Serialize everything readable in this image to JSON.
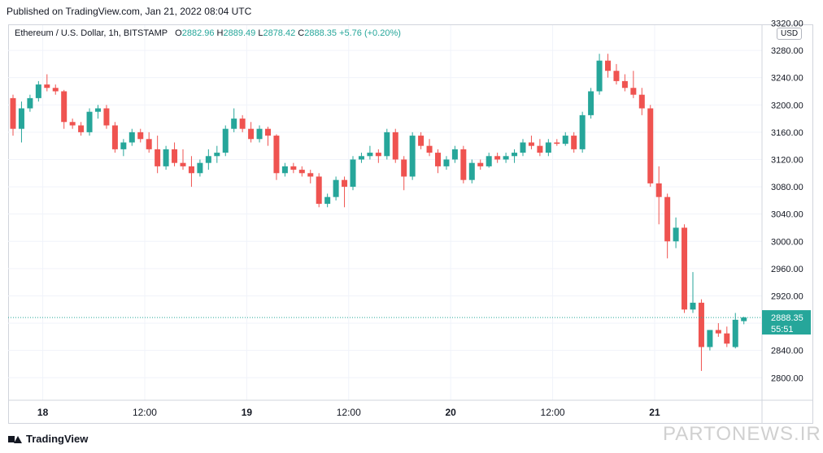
{
  "published": "Published on TradingView.com, Jan 21, 2022 08:04 UTC",
  "legend": {
    "symbol": "Ethereum / U.S. Dollar, 1h, BITSTAMP",
    "o_label": "O",
    "o": "2882.96",
    "h_label": "H",
    "h": "2889.49",
    "l_label": "L",
    "l": "2878.42",
    "c_label": "C",
    "c": "2888.35",
    "change": "+5.76 (+0.20%)"
  },
  "currency": "USD",
  "price_label": {
    "price": "2888.35",
    "timer": "55:51"
  },
  "footer": {
    "brand": "TradingView",
    "watermark": "PARTONEWS.IR"
  },
  "colors": {
    "up": "#26a69a",
    "down": "#ef5350",
    "grid": "#f0f3fa",
    "axis_text": "#131722"
  },
  "chart_data": {
    "type": "candlestick",
    "title": "Ethereum / U.S. Dollar, 1h, BITSTAMP",
    "ylim": [
      2767,
      3317
    ],
    "y_ticks": [
      2800,
      2840,
      2880,
      2920,
      2960,
      3000,
      3040,
      3080,
      3120,
      3160,
      3200,
      3240,
      3280,
      3320
    ],
    "x_tick_labels": [
      {
        "label": "18",
        "index": 3.5
      },
      {
        "label": "12:00",
        "index": 15.5
      },
      {
        "label": "19",
        "index": 27.5
      },
      {
        "label": "12:00",
        "index": 39.5
      },
      {
        "label": "20",
        "index": 51.5
      },
      {
        "label": "12:00",
        "index": 63.5
      },
      {
        "label": "21",
        "index": 75.5
      }
    ],
    "last_price": 2888.35,
    "candles": [
      [
        3210,
        3215,
        3155,
        3165
      ],
      [
        3165,
        3205,
        3145,
        3195
      ],
      [
        3195,
        3215,
        3190,
        3210
      ],
      [
        3210,
        3235,
        3205,
        3230
      ],
      [
        3230,
        3245,
        3220,
        3225
      ],
      [
        3225,
        3230,
        3215,
        3220
      ],
      [
        3220,
        3222,
        3165,
        3175
      ],
      [
        3175,
        3180,
        3165,
        3170
      ],
      [
        3170,
        3175,
        3155,
        3160
      ],
      [
        3160,
        3195,
        3155,
        3190
      ],
      [
        3190,
        3200,
        3180,
        3195
      ],
      [
        3195,
        3200,
        3165,
        3170
      ],
      [
        3170,
        3175,
        3130,
        3135
      ],
      [
        3135,
        3150,
        3125,
        3145
      ],
      [
        3145,
        3165,
        3140,
        3160
      ],
      [
        3160,
        3165,
        3145,
        3150
      ],
      [
        3150,
        3160,
        3130,
        3135
      ],
      [
        3135,
        3155,
        3100,
        3110
      ],
      [
        3110,
        3140,
        3105,
        3135
      ],
      [
        3135,
        3145,
        3110,
        3115
      ],
      [
        3115,
        3135,
        3105,
        3110
      ],
      [
        3110,
        3125,
        3080,
        3100
      ],
      [
        3100,
        3120,
        3095,
        3115
      ],
      [
        3115,
        3135,
        3105,
        3125
      ],
      [
        3125,
        3140,
        3115,
        3130
      ],
      [
        3130,
        3170,
        3125,
        3165
      ],
      [
        3165,
        3195,
        3160,
        3180
      ],
      [
        3180,
        3185,
        3160,
        3165
      ],
      [
        3165,
        3175,
        3145,
        3150
      ],
      [
        3150,
        3170,
        3145,
        3165
      ],
      [
        3165,
        3168,
        3140,
        3155
      ],
      [
        3155,
        3157,
        3090,
        3100
      ],
      [
        3100,
        3115,
        3095,
        3110
      ],
      [
        3110,
        3115,
        3100,
        3105
      ],
      [
        3105,
        3110,
        3095,
        3100
      ],
      [
        3100,
        3105,
        3085,
        3095
      ],
      [
        3095,
        3100,
        3050,
        3055
      ],
      [
        3055,
        3070,
        3050,
        3065
      ],
      [
        3065,
        3095,
        3060,
        3090
      ],
      [
        3090,
        3095,
        3050,
        3080
      ],
      [
        3080,
        3125,
        3075,
        3120
      ],
      [
        3120,
        3130,
        3115,
        3125
      ],
      [
        3125,
        3140,
        3120,
        3130
      ],
      [
        3130,
        3135,
        3115,
        3125
      ],
      [
        3125,
        3165,
        3120,
        3160
      ],
      [
        3160,
        3165,
        3115,
        3120
      ],
      [
        3120,
        3125,
        3075,
        3095
      ],
      [
        3095,
        3160,
        3090,
        3155
      ],
      [
        3155,
        3160,
        3135,
        3140
      ],
      [
        3140,
        3150,
        3125,
        3130
      ],
      [
        3130,
        3135,
        3100,
        3110
      ],
      [
        3110,
        3125,
        3105,
        3120
      ],
      [
        3120,
        3140,
        3115,
        3135
      ],
      [
        3135,
        3140,
        3085,
        3090
      ],
      [
        3090,
        3120,
        3085,
        3115
      ],
      [
        3115,
        3120,
        3105,
        3110
      ],
      [
        3110,
        3130,
        3108,
        3125
      ],
      [
        3125,
        3130,
        3115,
        3120
      ],
      [
        3120,
        3130,
        3115,
        3125
      ],
      [
        3125,
        3135,
        3115,
        3130
      ],
      [
        3130,
        3150,
        3125,
        3145
      ],
      [
        3145,
        3155,
        3135,
        3140
      ],
      [
        3140,
        3150,
        3125,
        3130
      ],
      [
        3130,
        3150,
        3125,
        3145
      ],
      [
        3145,
        3150,
        3140,
        3143
      ],
      [
        3143,
        3160,
        3140,
        3155
      ],
      [
        3155,
        3160,
        3130,
        3135
      ],
      [
        3135,
        3190,
        3130,
        3185
      ],
      [
        3185,
        3225,
        3180,
        3220
      ],
      [
        3220,
        3275,
        3215,
        3265
      ],
      [
        3265,
        3275,
        3240,
        3250
      ],
      [
        3250,
        3260,
        3230,
        3235
      ],
      [
        3235,
        3245,
        3220,
        3225
      ],
      [
        3225,
        3250,
        3210,
        3215
      ],
      [
        3215,
        3225,
        3185,
        3195
      ],
      [
        3195,
        3200,
        3080,
        3085
      ],
      [
        3085,
        3110,
        3025,
        3065
      ],
      [
        3065,
        3070,
        2975,
        3000
      ],
      [
        3000,
        3035,
        2990,
        3020
      ],
      [
        3020,
        3025,
        2895,
        2900
      ],
      [
        2900,
        2955,
        2895,
        2910
      ],
      [
        2910,
        2915,
        2810,
        2845
      ],
      [
        2845,
        2870,
        2840,
        2870
      ],
      [
        2870,
        2880,
        2860,
        2865
      ],
      [
        2865,
        2875,
        2845,
        2850
      ],
      [
        2845,
        2895,
        2843,
        2885
      ],
      [
        2882.96,
        2889.49,
        2878.42,
        2888.35
      ]
    ]
  }
}
